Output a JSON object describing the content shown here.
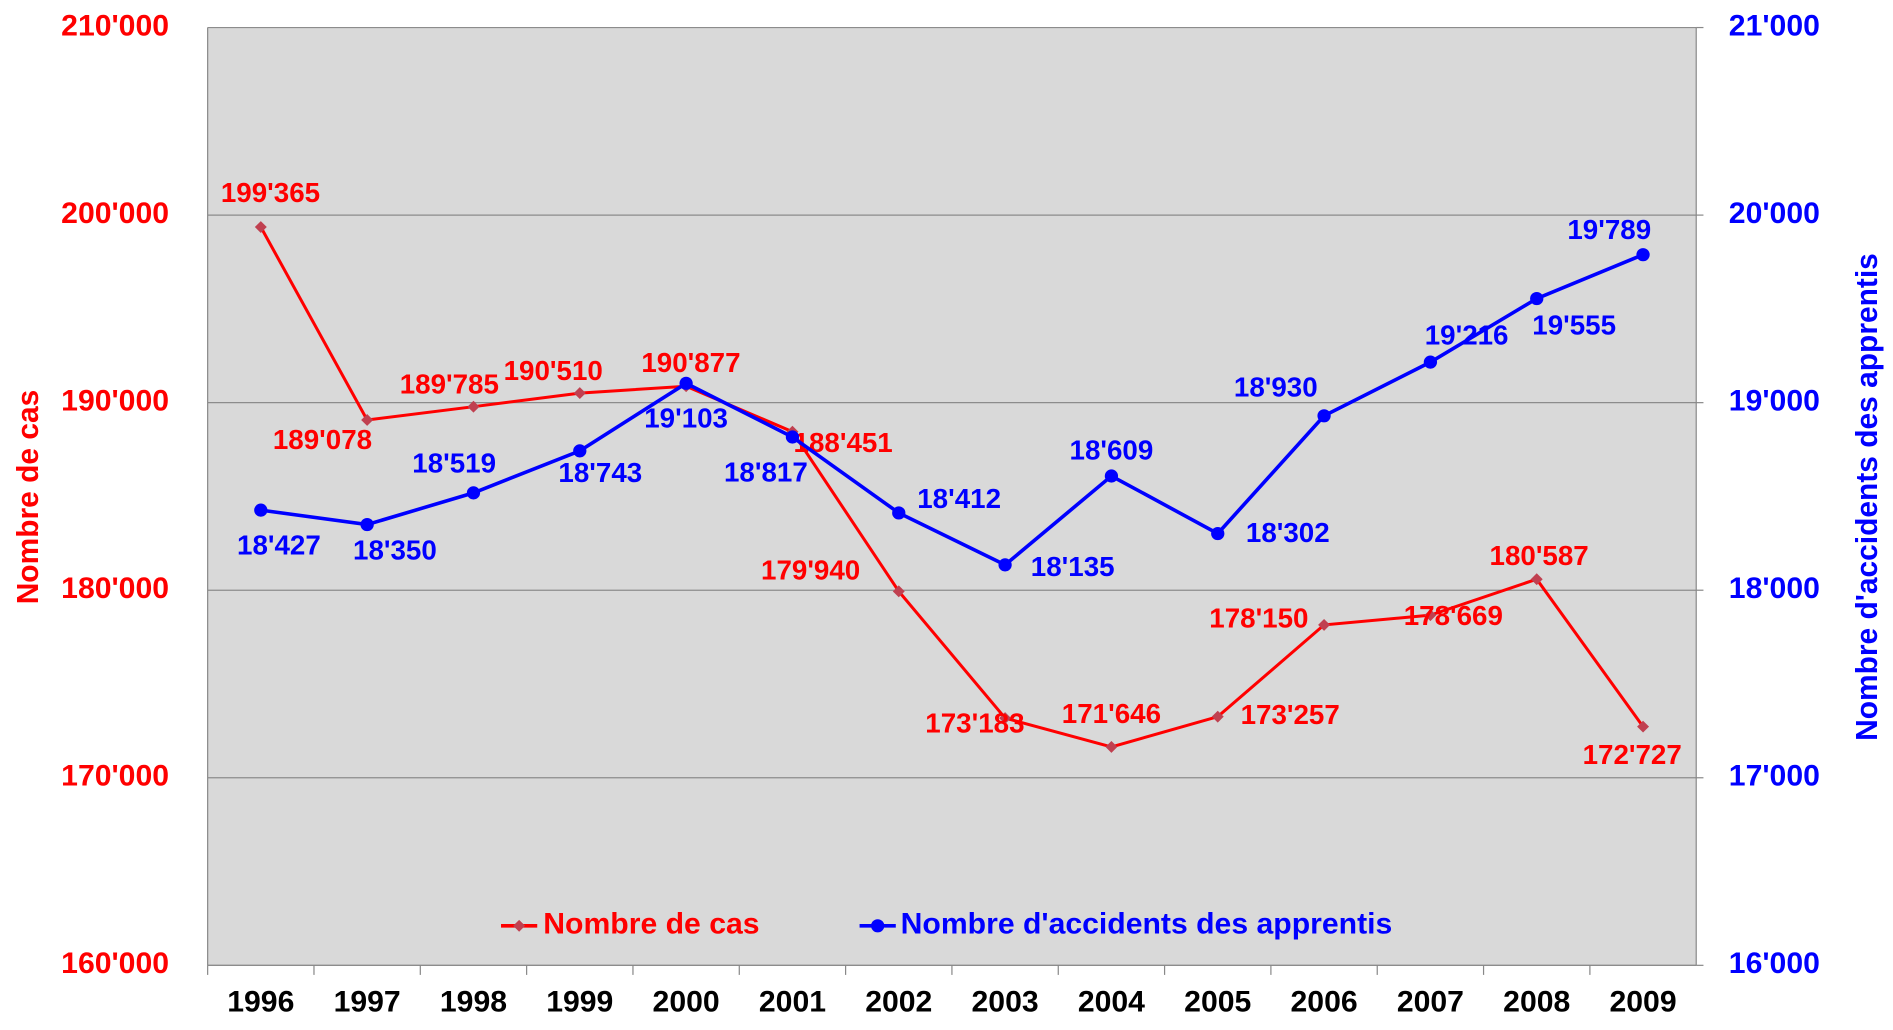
{
  "chart_data": {
    "type": "line",
    "categories": [
      "1996",
      "1997",
      "1998",
      "1999",
      "2000",
      "2001",
      "2002",
      "2003",
      "2004",
      "2005",
      "2006",
      "2007",
      "2008",
      "2009"
    ],
    "ylabel": "Nombre de cas",
    "y2label": "Nombre d'accidents des apprentis",
    "ylim": [
      160000,
      210000
    ],
    "yticks": [
      {
        "value": 160000,
        "label": "160'000"
      },
      {
        "value": 170000,
        "label": "170'000"
      },
      {
        "value": 180000,
        "label": "180'000"
      },
      {
        "value": 190000,
        "label": "190'000"
      },
      {
        "value": 200000,
        "label": "200'000"
      },
      {
        "value": 210000,
        "label": "210'000"
      }
    ],
    "y2lim": [
      16000,
      21000
    ],
    "y2ticks": [
      {
        "value": 16000,
        "label": "16'000"
      },
      {
        "value": 17000,
        "label": "17'000"
      },
      {
        "value": 18000,
        "label": "18'000"
      },
      {
        "value": 19000,
        "label": "19'000"
      },
      {
        "value": 20000,
        "label": "20'000"
      },
      {
        "value": 21000,
        "label": "21'000"
      }
    ],
    "grid": true,
    "legend": "bottom",
    "series": [
      {
        "name": "Nombre de cas",
        "color": "#ff0000",
        "axis": "y",
        "values": [
          199365,
          189078,
          189785,
          190510,
          190877,
          188451,
          179940,
          173183,
          171646,
          173257,
          178150,
          178669,
          180587,
          172727
        ],
        "value_labels": [
          "199'365",
          "189'078",
          "189'785",
          "190'510",
          "190'877",
          "188'451",
          "179'940",
          "173'183",
          "171'646",
          "173'257",
          "178'150",
          "178'669",
          "180'587",
          "172'727"
        ]
      },
      {
        "name": "Nombre d'accidents des apprentis",
        "color": "#0000ff",
        "axis": "y2",
        "values": [
          18427,
          18350,
          18519,
          18743,
          19103,
          18817,
          18412,
          18135,
          18609,
          18302,
          18930,
          19216,
          19555,
          19789
        ],
        "value_labels": [
          "18'427",
          "18'350",
          "18'519",
          "18'743",
          "19'103",
          "18'817",
          "18'412",
          "18'135",
          "18'609",
          "18'302",
          "18'930",
          "19'216",
          "19'555",
          "19'789"
        ]
      }
    ]
  }
}
